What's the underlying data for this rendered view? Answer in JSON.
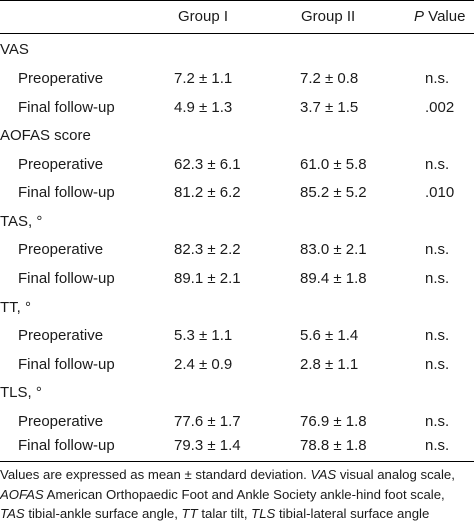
{
  "header": {
    "group1": "Group I",
    "group2": "Group II",
    "p_italic": "P",
    "p_rest": " Value"
  },
  "sections": [
    {
      "label": "VAS",
      "rows": [
        {
          "label": "Preoperative",
          "g1": "7.2 ± 1.1",
          "g2": "7.2 ± 0.8",
          "p": "n.s."
        },
        {
          "label": "Final follow-up",
          "g1": "4.9 ± 1.3",
          "g2": "3.7 ± 1.5",
          "p": ".002"
        }
      ]
    },
    {
      "label": "AOFAS score",
      "rows": [
        {
          "label": "Preoperative",
          "g1": "62.3 ± 6.1",
          "g2": "61.0 ± 5.8",
          "p": "n.s."
        },
        {
          "label": "Final follow-up",
          "g1": "81.2 ± 6.2",
          "g2": "85.2 ± 5.2",
          "p": ".010"
        }
      ]
    },
    {
      "label": "TAS, °",
      "rows": [
        {
          "label": "Preoperative",
          "g1": "82.3 ± 2.2",
          "g2": "83.0 ± 2.1",
          "p": "n.s."
        },
        {
          "label": "Final follow-up",
          "g1": "89.1 ± 2.1",
          "g2": "89.4 ± 1.8",
          "p": "n.s."
        }
      ]
    },
    {
      "label": "TT, °",
      "rows": [
        {
          "label": "Preoperative",
          "g1": "5.3 ± 1.1",
          "g2": "5.6 ± 1.4",
          "p": "n.s."
        },
        {
          "label": "Final follow-up",
          "g1": "2.4 ± 0.9",
          "g2": "2.8 ± 1.1",
          "p": "n.s."
        }
      ]
    },
    {
      "label": "TLS, °",
      "rows": [
        {
          "label": "Preoperative",
          "g1": "77.6 ± 1.7",
          "g2": "76.9 ± 1.8",
          "p": "n.s."
        },
        {
          "label": "Final follow-up",
          "g1": "79.3 ± 1.4",
          "g2": "78.8 ± 1.8",
          "p": "n.s."
        }
      ]
    }
  ],
  "footnote": {
    "l1_a": "Values are expressed as mean ± standard deviation. ",
    "l1_b": "VAS",
    "l1_c": " visual analog scale,",
    "l2_a": "AOFAS",
    "l2_b": " American Orthopaedic Foot and Ankle Society ankle-hind foot scale,",
    "l3_a": "TAS",
    "l3_b": " tibial-ankle surface angle, ",
    "l3_c": "TT",
    "l3_d": " talar tilt, ",
    "l3_e": "TLS",
    "l3_f": " tibial-lateral surface angle"
  }
}
